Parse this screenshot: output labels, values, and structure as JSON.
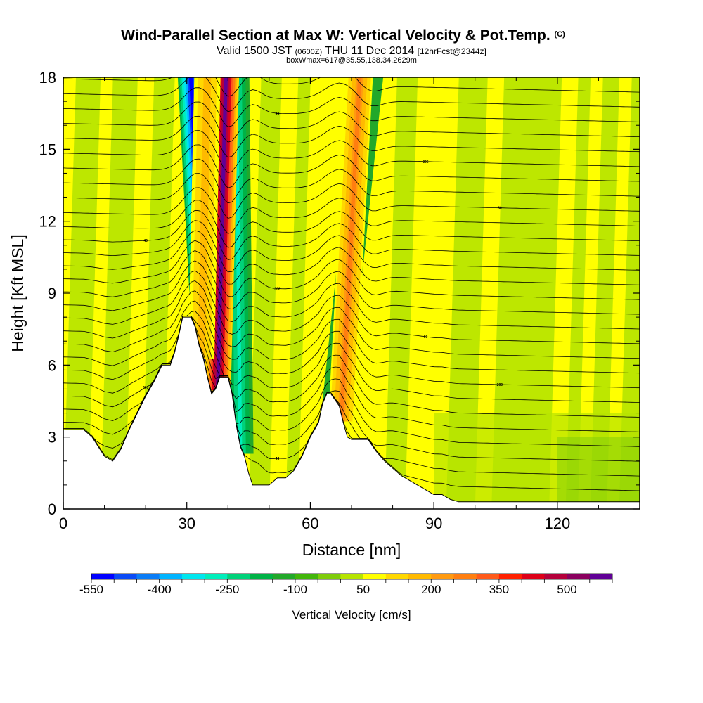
{
  "chart_data": {
    "type": "heatmap",
    "title": "Wind-Parallel Section at Max W: Vertical Velocity & Pot.Temp.",
    "title_mark": "(C)",
    "subtitle_main_a": "Valid 1500 JST",
    "subtitle_small_a": "(0600Z)",
    "subtitle_main_b": "THU 11 Dec 2014",
    "subtitle_small_b": "[12hrFcst@2344z]",
    "subtitle2": "boxWmax=617@35.55,138.34,2629m",
    "xlabel": "Distance [nm]",
    "ylabel": "Height [Kft MSL]",
    "xlim": [
      0,
      140
    ],
    "ylim": [
      0,
      18
    ],
    "x_ticks": [
      0,
      30,
      60,
      90,
      120
    ],
    "y_ticks": [
      0,
      3,
      6,
      9,
      12,
      15,
      18
    ],
    "x_tick_labels": [
      "0",
      "30",
      "60",
      "90",
      "120"
    ],
    "y_tick_labels": [
      "0",
      "3",
      "6",
      "9",
      "12",
      "15",
      "18"
    ],
    "colorbar": {
      "label": "Vertical Velocity [cm/s]",
      "min": -550,
      "step": 50,
      "tick_values": [
        -550,
        -400,
        -250,
        -100,
        50,
        200,
        350,
        500
      ],
      "tick_labels": [
        "-550",
        "-400",
        "-250",
        "-100",
        "50",
        "200",
        "350",
        "500"
      ],
      "colors": [
        "#0000ff",
        "#0a4af6",
        "#0a7cf6",
        "#00b4ff",
        "#00e6ee",
        "#00eebb",
        "#00d27a",
        "#00b246",
        "#22a82a",
        "#42b60a",
        "#7ecc0a",
        "#b6e400",
        "#ffff00",
        "#ffd800",
        "#ffba00",
        "#ff9a10",
        "#ff7e10",
        "#ff5a1a",
        "#ff2000",
        "#dd0018",
        "#b4003a",
        "#8a005e",
        "#600096"
      ]
    },
    "updrafts": [
      {
        "x_base": 37.5,
        "x_top": 39.5,
        "peak_cm_s": 560
      },
      {
        "x_base": 33.5,
        "x_top": 35.0,
        "peak_cm_s": 170
      },
      {
        "x_base": 67.5,
        "x_top": 72.0,
        "peak_cm_s": 250
      }
    ],
    "downdrafts": [
      {
        "x_base": 35.0,
        "x_top": 31.0,
        "peak_cm_s": -520
      },
      {
        "x_base": 43.0,
        "x_top": 42.0,
        "peak_cm_s": -260
      },
      {
        "x_base": 66.0,
        "x_top": 74.5,
        "peak_cm_s": -160
      }
    ],
    "terrain": [
      [
        0,
        3.3
      ],
      [
        5,
        3.3
      ],
      [
        7,
        3.0
      ],
      [
        10,
        2.2
      ],
      [
        12,
        2.0
      ],
      [
        14,
        2.5
      ],
      [
        16,
        3.3
      ],
      [
        18,
        4.0
      ],
      [
        20,
        4.7
      ],
      [
        22,
        5.3
      ],
      [
        24,
        6.0
      ],
      [
        26,
        6.0
      ],
      [
        27,
        6.5
      ],
      [
        28,
        7.2
      ],
      [
        29,
        8.0
      ],
      [
        31,
        8.0
      ],
      [
        32,
        7.6
      ],
      [
        33,
        6.8
      ],
      [
        34,
        6.3
      ],
      [
        35,
        5.5
      ],
      [
        36,
        4.8
      ],
      [
        37,
        5.0
      ],
      [
        38,
        5.5
      ],
      [
        40,
        5.5
      ],
      [
        41,
        4.8
      ],
      [
        42,
        3.5
      ],
      [
        43,
        2.6
      ],
      [
        44,
        2.2
      ],
      [
        45,
        1.5
      ],
      [
        46,
        1.0
      ],
      [
        48,
        1.0
      ],
      [
        50,
        1.0
      ],
      [
        52,
        1.3
      ],
      [
        54,
        1.3
      ],
      [
        56,
        1.6
      ],
      [
        58,
        2.2
      ],
      [
        60,
        3.0
      ],
      [
        62,
        3.6
      ],
      [
        63,
        4.4
      ],
      [
        64,
        4.8
      ],
      [
        65,
        4.8
      ],
      [
        67,
        4.3
      ],
      [
        68,
        3.6
      ],
      [
        69,
        3.0
      ],
      [
        70,
        2.9
      ],
      [
        72,
        2.9
      ],
      [
        74,
        2.9
      ],
      [
        76,
        2.4
      ],
      [
        78,
        2.0
      ],
      [
        80,
        1.7
      ],
      [
        82,
        1.4
      ],
      [
        84,
        1.2
      ],
      [
        86,
        1.0
      ],
      [
        88,
        0.8
      ],
      [
        90,
        0.6
      ],
      [
        92,
        0.6
      ],
      [
        94,
        0.4
      ],
      [
        96,
        0.3
      ],
      [
        100,
        0.3
      ],
      [
        110,
        0.3
      ],
      [
        120,
        0.3
      ],
      [
        130,
        0.3
      ],
      [
        140,
        0.3
      ]
    ],
    "isentrope_labels": [
      "40",
      "44",
      "60",
      "80",
      "300",
      "306",
      "296",
      "290"
    ]
  }
}
